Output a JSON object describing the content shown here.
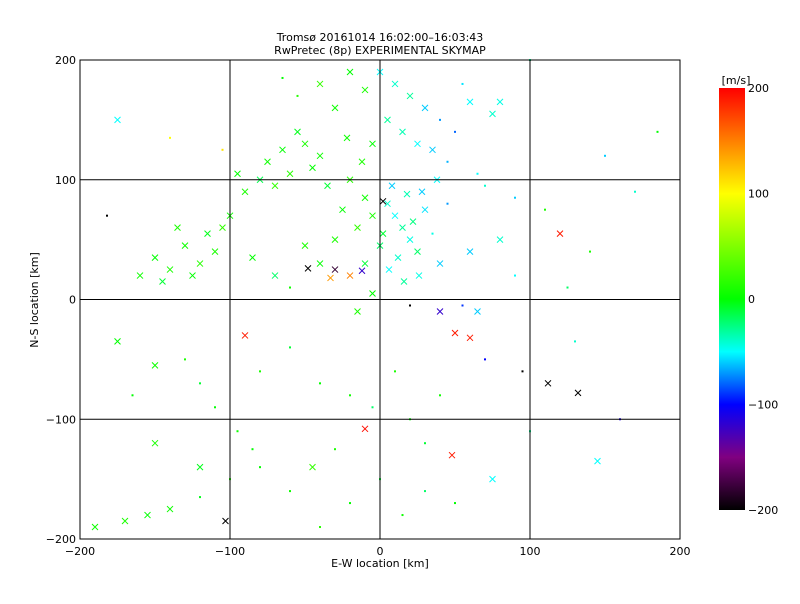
{
  "chart_data": {
    "type": "scatter",
    "title": "Tromsø 20161014 16:02:00–16:03:43",
    "subtitle": "RwPretec (8p) EXPERIMENTAL SKYMAP",
    "xlabel": "E-W location [km]",
    "ylabel": "N-S location [km]",
    "xlim": [
      -200,
      200
    ],
    "ylim": [
      -200,
      200
    ],
    "xticks": [
      "-200",
      "-100",
      "0",
      "100",
      "200"
    ],
    "yticks": [
      "-200",
      "-100",
      "0",
      "100",
      "200"
    ],
    "grid": true,
    "colorbar": {
      "label": "[m/s]",
      "range": [
        -200,
        200
      ],
      "ticks": [
        "200",
        "100",
        "0",
        "-100",
        "-200"
      ],
      "colors": [
        "#000000",
        "#800080",
        "#0000ff",
        "#00ffff",
        "#00ff00",
        "#ffff00",
        "#ff0000"
      ]
    },
    "point_format": [
      "x_km",
      "y_km",
      "velocity_ms",
      "marker(0=dot,1=cross)"
    ],
    "points": [
      [
        5,
        80,
        -40,
        1
      ],
      [
        10,
        70,
        -50,
        1
      ],
      [
        15,
        60,
        -30,
        1
      ],
      [
        20,
        50,
        -45,
        1
      ],
      [
        25,
        40,
        -20,
        1
      ],
      [
        8,
        95,
        -60,
        1
      ],
      [
        18,
        88,
        -35,
        1
      ],
      [
        30,
        75,
        -55,
        1
      ],
      [
        2,
        55,
        -10,
        1
      ],
      [
        12,
        35,
        -40,
        1
      ],
      [
        22,
        65,
        -25,
        1
      ],
      [
        28,
        90,
        -60,
        1
      ],
      [
        35,
        55,
        -45,
        0
      ],
      [
        0,
        45,
        -20,
        1
      ],
      [
        6,
        25,
        -50,
        1
      ],
      [
        16,
        15,
        -30,
        1
      ],
      [
        26,
        20,
        -45,
        1
      ],
      [
        40,
        30,
        -60,
        1
      ],
      [
        45,
        80,
        -70,
        0
      ],
      [
        38,
        100,
        -50,
        1
      ],
      [
        -5,
        70,
        10,
        1
      ],
      [
        -10,
        85,
        5,
        1
      ],
      [
        -15,
        60,
        20,
        1
      ],
      [
        -20,
        100,
        15,
        1
      ],
      [
        -25,
        75,
        0,
        1
      ],
      [
        -30,
        50,
        10,
        1
      ],
      [
        -35,
        95,
        -10,
        1
      ],
      [
        -40,
        120,
        5,
        1
      ],
      [
        -45,
        110,
        0,
        1
      ],
      [
        -50,
        130,
        10,
        1
      ],
      [
        -55,
        140,
        -5,
        1
      ],
      [
        -60,
        105,
        15,
        1
      ],
      [
        -65,
        125,
        0,
        1
      ],
      [
        -70,
        95,
        20,
        1
      ],
      [
        -75,
        115,
        5,
        1
      ],
      [
        -80,
        100,
        -15,
        1
      ],
      [
        -90,
        90,
        10,
        1
      ],
      [
        -95,
        105,
        0,
        1
      ],
      [
        -100,
        70,
        5,
        1
      ],
      [
        -105,
        60,
        20,
        1
      ],
      [
        -110,
        40,
        10,
        1
      ],
      [
        -115,
        55,
        -5,
        1
      ],
      [
        -120,
        30,
        15,
        1
      ],
      [
        -125,
        20,
        0,
        1
      ],
      [
        -130,
        45,
        5,
        1
      ],
      [
        -140,
        25,
        10,
        1
      ],
      [
        -145,
        15,
        -10,
        1
      ],
      [
        -150,
        35,
        0,
        1
      ],
      [
        -160,
        20,
        5,
        1
      ],
      [
        -135,
        60,
        10,
        1
      ],
      [
        -85,
        35,
        0,
        1
      ],
      [
        -70,
        20,
        -20,
        1
      ],
      [
        -60,
        10,
        5,
        0
      ],
      [
        -50,
        45,
        10,
        1
      ],
      [
        -40,
        30,
        0,
        1
      ],
      [
        -30,
        25,
        -180,
        1
      ],
      [
        -20,
        20,
        150,
        1
      ],
      [
        -10,
        30,
        -10,
        1
      ],
      [
        -5,
        5,
        0,
        1
      ],
      [
        -15,
        -10,
        10,
        1
      ],
      [
        0,
        190,
        -50,
        1
      ],
      [
        10,
        180,
        -40,
        1
      ],
      [
        20,
        170,
        -30,
        1
      ],
      [
        -10,
        175,
        10,
        1
      ],
      [
        -20,
        190,
        0,
        1
      ],
      [
        30,
        160,
        -60,
        1
      ],
      [
        40,
        150,
        -70,
        0
      ],
      [
        50,
        140,
        -80,
        0
      ],
      [
        60,
        165,
        -50,
        1
      ],
      [
        75,
        155,
        -40,
        1
      ],
      [
        80,
        165,
        -45,
        1
      ],
      [
        55,
        180,
        -55,
        0
      ],
      [
        -30,
        160,
        5,
        1
      ],
      [
        -40,
        180,
        20,
        1
      ],
      [
        -55,
        170,
        15,
        0
      ],
      [
        -65,
        185,
        0,
        0
      ],
      [
        5,
        150,
        -30,
        1
      ],
      [
        15,
        140,
        -35,
        1
      ],
      [
        25,
        130,
        -50,
        1
      ],
      [
        35,
        125,
        -60,
        1
      ],
      [
        45,
        115,
        -65,
        0
      ],
      [
        -5,
        130,
        0,
        1
      ],
      [
        -12,
        115,
        10,
        1
      ],
      [
        -22,
        135,
        5,
        1
      ],
      [
        65,
        105,
        -50,
        0
      ],
      [
        70,
        95,
        -40,
        0
      ],
      [
        90,
        85,
        -60,
        0
      ],
      [
        110,
        75,
        10,
        0
      ],
      [
        120,
        55,
        190,
        1
      ],
      [
        -175,
        150,
        -50,
        1
      ],
      [
        -140,
        135,
        100,
        0
      ],
      [
        -105,
        125,
        110,
        0
      ],
      [
        -90,
        -30,
        190,
        1
      ],
      [
        -175,
        -35,
        0,
        1
      ],
      [
        -165,
        -80,
        0,
        0
      ],
      [
        -150,
        -55,
        5,
        1
      ],
      [
        -130,
        -50,
        10,
        0
      ],
      [
        -120,
        -70,
        -10,
        0
      ],
      [
        -110,
        -90,
        0,
        0
      ],
      [
        -95,
        -110,
        5,
        0
      ],
      [
        -80,
        -60,
        10,
        0
      ],
      [
        -60,
        -40,
        -10,
        0
      ],
      [
        -40,
        -70,
        0,
        0
      ],
      [
        -20,
        -80,
        5,
        0
      ],
      [
        -5,
        -90,
        -20,
        0
      ],
      [
        10,
        -60,
        10,
        0
      ],
      [
        20,
        -100,
        0,
        0
      ],
      [
        30,
        -120,
        -10,
        0
      ],
      [
        40,
        -80,
        5,
        0
      ],
      [
        -10,
        -108,
        195,
        1
      ],
      [
        50,
        -28,
        190,
        1
      ],
      [
        60,
        -32,
        190,
        1
      ],
      [
        48,
        -130,
        190,
        1
      ],
      [
        65,
        -10,
        -60,
        1
      ],
      [
        95,
        -60,
        -200,
        0
      ],
      [
        112,
        -70,
        -200,
        1
      ],
      [
        132,
        -78,
        -200,
        1
      ],
      [
        145,
        -135,
        -50,
        1
      ],
      [
        160,
        -100,
        -110,
        0
      ],
      [
        100,
        -110,
        -30,
        0
      ],
      [
        -103,
        -185,
        -200,
        1
      ],
      [
        -170,
        -185,
        10,
        1
      ],
      [
        -155,
        -180,
        0,
        1
      ],
      [
        -140,
        -175,
        5,
        1
      ],
      [
        -120,
        -165,
        -5,
        0
      ],
      [
        -100,
        -150,
        10,
        0
      ],
      [
        -80,
        -140,
        0,
        0
      ],
      [
        -60,
        -160,
        5,
        0
      ],
      [
        -40,
        -190,
        15,
        0
      ],
      [
        -20,
        -170,
        0,
        0
      ],
      [
        0,
        -150,
        -10,
        0
      ],
      [
        15,
        -180,
        5,
        0
      ],
      [
        30,
        -160,
        -20,
        0
      ],
      [
        50,
        -170,
        0,
        0
      ],
      [
        75,
        -150,
        -50,
        1
      ],
      [
        -45,
        -140,
        20,
        1
      ],
      [
        -150,
        -120,
        10,
        1
      ],
      [
        -120,
        -140,
        -5,
        1
      ],
      [
        -85,
        -125,
        0,
        0
      ],
      [
        -30,
        -125,
        10,
        0
      ],
      [
        -33,
        18,
        140,
        1
      ],
      [
        -48,
        26,
        -200,
        1
      ],
      [
        -12,
        24,
        -120,
        1
      ],
      [
        2,
        82,
        -200,
        1
      ],
      [
        20,
        -5,
        -200,
        0
      ],
      [
        40,
        -10,
        -120,
        1
      ],
      [
        -182,
        70,
        -200,
        0
      ],
      [
        -190,
        -190,
        5,
        1
      ],
      [
        130,
        -35,
        -40,
        0
      ],
      [
        185,
        140,
        0,
        0
      ],
      [
        100,
        200,
        -30,
        0
      ],
      [
        150,
        120,
        -60,
        0
      ],
      [
        170,
        90,
        -40,
        0
      ],
      [
        140,
        40,
        10,
        0
      ],
      [
        125,
        10,
        -20,
        0
      ],
      [
        90,
        20,
        -50,
        0
      ],
      [
        80,
        50,
        -40,
        1
      ],
      [
        60,
        40,
        -60,
        1
      ],
      [
        55,
        -5,
        -90,
        0
      ],
      [
        70,
        -50,
        -100,
        0
      ]
    ]
  }
}
